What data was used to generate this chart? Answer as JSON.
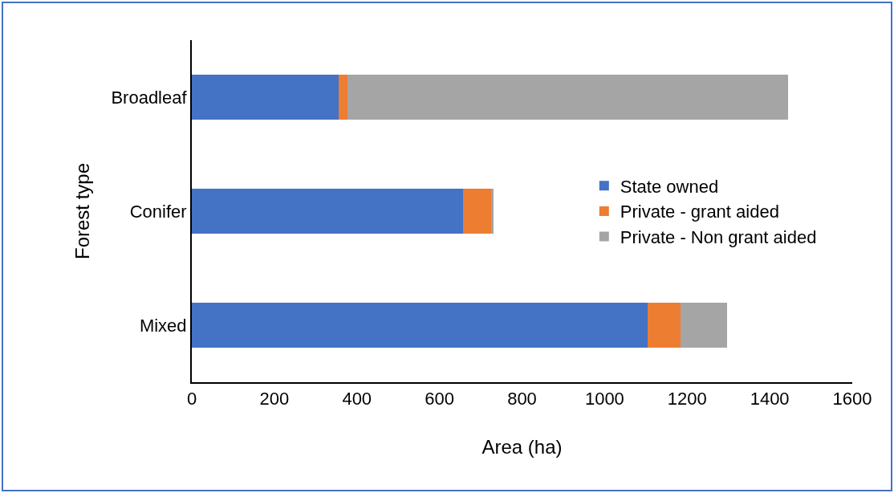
{
  "chart_data": {
    "type": "bar",
    "orientation": "horizontal",
    "stacked": true,
    "categories": [
      "Broadleaf",
      "Conifer",
      "Mixed"
    ],
    "series": [
      {
        "name": "State owned",
        "color": "#4472c4",
        "values": [
          355,
          657,
          1105
        ]
      },
      {
        "name": "Private - grant aided",
        "color": "#ed7d31",
        "values": [
          23,
          68,
          78
        ]
      },
      {
        "name": "Private - Non grant aided",
        "color": "#a5a5a5",
        "values": [
          1066,
          6,
          114
        ]
      }
    ],
    "xlabel": "Area (ha)",
    "ylabel": "Forest type",
    "xlim": [
      0,
      1600
    ],
    "xticks": [
      0,
      200,
      400,
      600,
      800,
      1000,
      1200,
      1400,
      1600
    ],
    "grid": false,
    "legend": "right"
  }
}
